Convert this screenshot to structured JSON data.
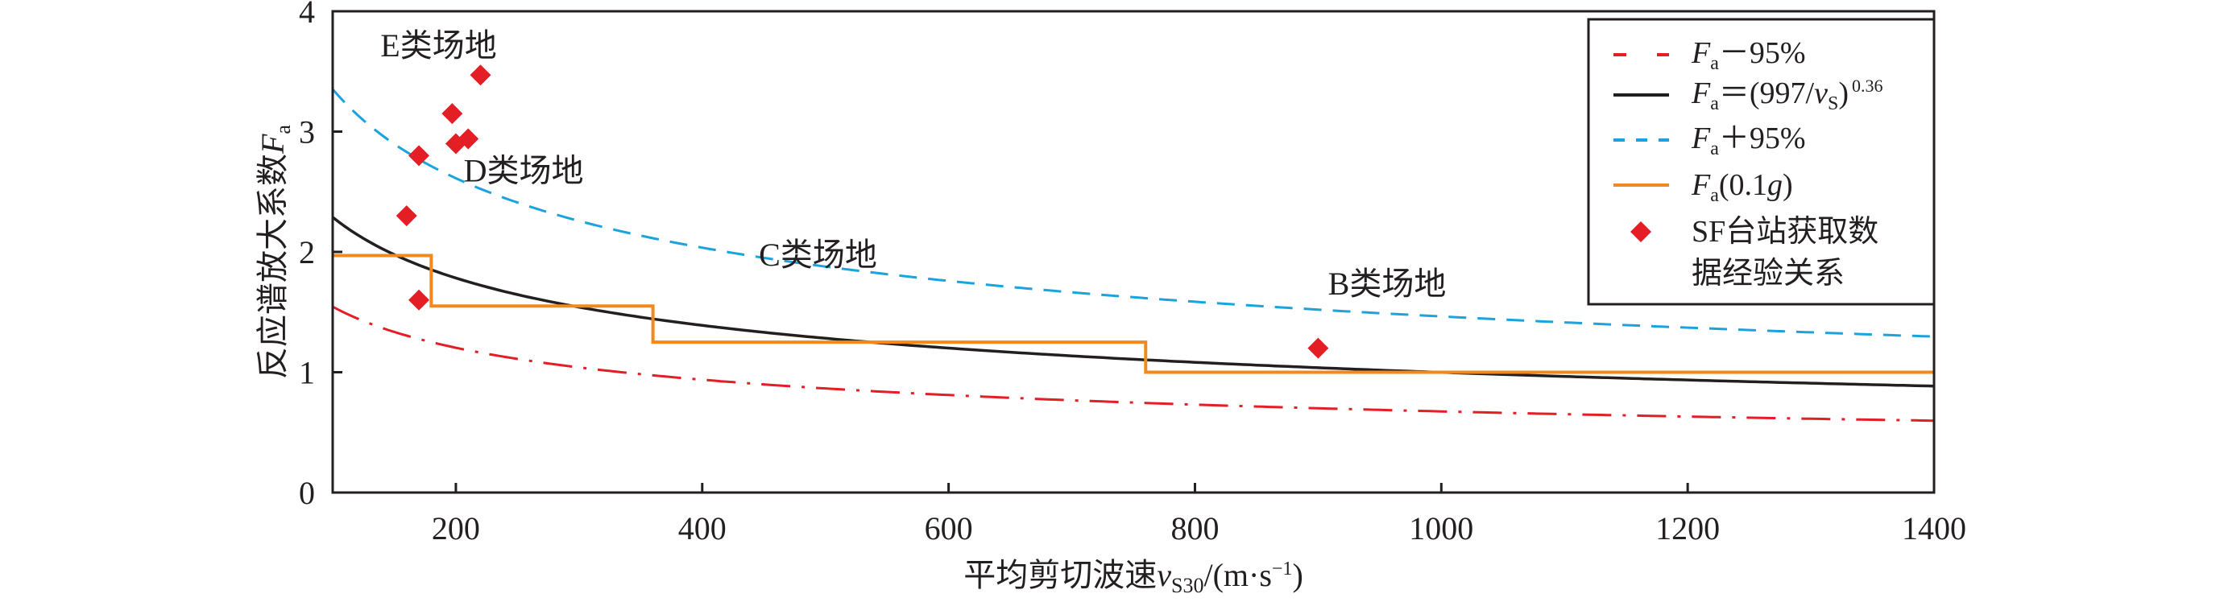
{
  "chart_data": {
    "type": "line",
    "xlabel": "平均剪切波速v_S30/(m·s⁻¹)",
    "xlabel_parts": {
      "main": "平均剪切波速",
      "var": "v",
      "sub": "S30",
      "unit": "/(m·s",
      "exp": "−1",
      "close": ")"
    },
    "ylabel": "反应谱放大系数F_a",
    "ylabel_parts": {
      "main": "反应谱放大系数",
      "var": "F",
      "sub": "a"
    },
    "xlim": [
      100,
      1400
    ],
    "ylim": [
      0,
      4
    ],
    "xticks": [
      200,
      400,
      600,
      800,
      1000,
      1200,
      1400
    ],
    "yticks": [
      0,
      1,
      2,
      3,
      4
    ],
    "grid": false,
    "legend_position": "top-right",
    "series": [
      {
        "name": "Fa−95%",
        "legend": {
          "var": "F",
          "sub": "a",
          "rest": "－95%"
        },
        "color": "#e31e24",
        "style": "dash-dot",
        "formula_factor": 0.675
      },
      {
        "name": "Fa=(997/vS)^0.36",
        "legend": {
          "var": "F",
          "sub": "a",
          "rest": "＝(997/",
          "v": "v",
          "vsub": "S",
          "close": ")",
          "exp": "0.36"
        },
        "color": "#231f20",
        "style": "solid",
        "formula": "(997/v)^0.36"
      },
      {
        "name": "Fa+95%",
        "legend": {
          "var": "F",
          "sub": "a",
          "rest": "＋95%"
        },
        "color": "#1aa3dc",
        "style": "dashed",
        "formula_factor": 1.465
      },
      {
        "name": "Fa(0.1g)",
        "legend": {
          "var": "F",
          "sub": "a",
          "rest": "(0.1",
          "g": "g",
          "close": ")"
        },
        "color": "#f08a1e",
        "style": "step",
        "steps": [
          {
            "x0": 100,
            "x1": 180,
            "y": 1.97
          },
          {
            "x0": 180,
            "x1": 360,
            "y": 1.55
          },
          {
            "x0": 360,
            "x1": 760,
            "y": 1.25
          },
          {
            "x0": 760,
            "x1": 1400,
            "y": 1.0
          }
        ]
      },
      {
        "name": "SF台站获取数据经验关系",
        "legend": {
          "line1": "SF台站获取数",
          "line2": "据经验关系"
        },
        "color": "#e31e24",
        "style": "marker-diamond",
        "points": [
          [
            160,
            2.3
          ],
          [
            170,
            1.6
          ],
          [
            170,
            2.8
          ],
          [
            197,
            3.15
          ],
          [
            200,
            2.9
          ],
          [
            210,
            2.94
          ],
          [
            220,
            3.47
          ],
          [
            900,
            1.2
          ]
        ]
      }
    ],
    "annotations": [
      {
        "text": "E类场地",
        "x": 186,
        "y": 3.72
      },
      {
        "text": "D类场地",
        "x": 255,
        "y": 2.68
      },
      {
        "text": "C类场地",
        "x": 494,
        "y": 1.98
      },
      {
        "text": "B类场地",
        "x": 956,
        "y": 1.74
      }
    ]
  }
}
